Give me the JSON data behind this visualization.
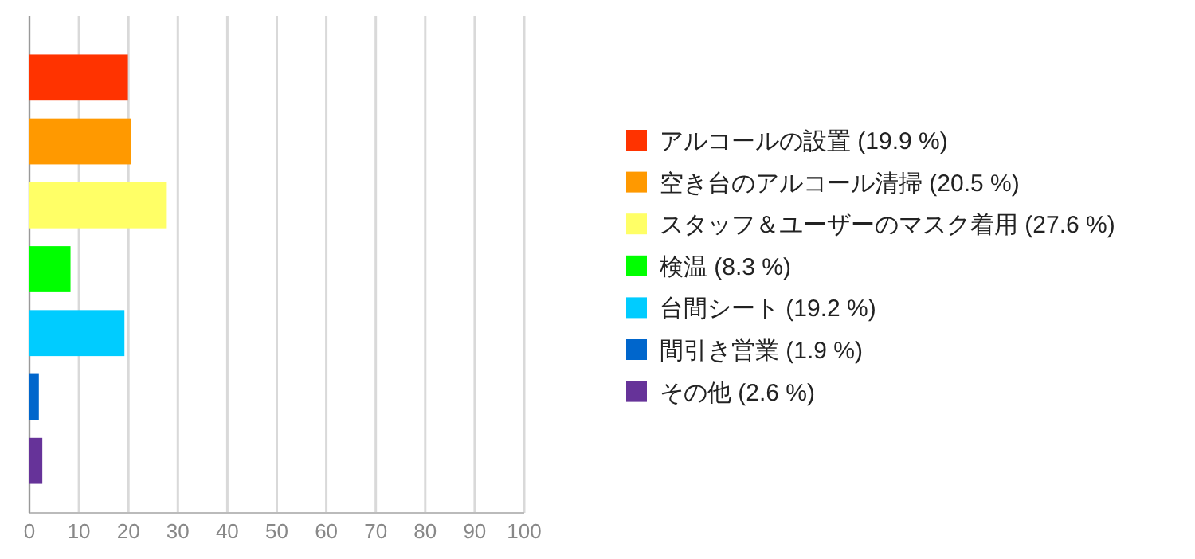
{
  "chart_data": {
    "type": "bar",
    "orientation": "horizontal",
    "categories": [
      null
    ],
    "series": [
      {
        "name": "アルコールの設置 (19.9 %)",
        "color": "#ff3300",
        "values": [
          19.9
        ]
      },
      {
        "name": "空き台のアルコール清掃 (20.5 %)",
        "color": "#ff9900",
        "values": [
          20.5
        ]
      },
      {
        "name": "スタッフ＆ユーザーのマスク着用 (27.6 %)",
        "color": "#ffff66",
        "values": [
          27.6
        ]
      },
      {
        "name": "検温 (8.3 %)",
        "color": "#00ff00",
        "values": [
          8.3
        ]
      },
      {
        "name": "台間シート (19.2 %)",
        "color": "#00ccff",
        "values": [
          19.2
        ]
      },
      {
        "name": "間引き営業 (1.9 %)",
        "color": "#0066cc",
        "values": [
          1.9
        ]
      },
      {
        "name": "その他 (2.6 %)",
        "color": "#663399",
        "values": [
          2.6
        ]
      }
    ],
    "xlim": [
      0,
      100
    ],
    "xticks": [
      0,
      10,
      20,
      30,
      40,
      50,
      60,
      70,
      80,
      90,
      100
    ],
    "grid": "x",
    "legend": "right",
    "tick_labels": "x"
  }
}
